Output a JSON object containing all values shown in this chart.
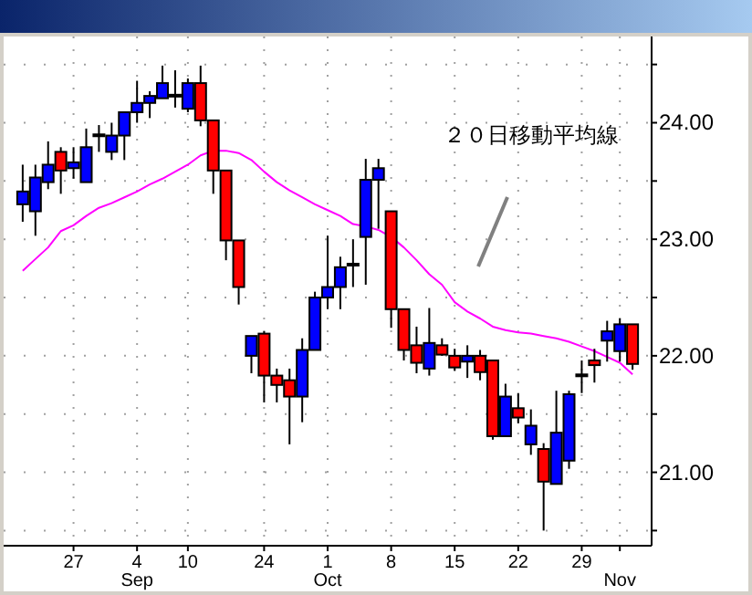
{
  "chart_data": {
    "type": "candlestick",
    "categories": [
      null,
      null,
      null,
      null,
      "27",
      null,
      null,
      null,
      null,
      "4\nSep",
      null,
      null,
      null,
      "10",
      null,
      null,
      null,
      null,
      null,
      "24",
      null,
      null,
      null,
      null,
      "1\nOct",
      null,
      null,
      null,
      null,
      "8",
      null,
      null,
      null,
      null,
      "15",
      null,
      null,
      null,
      null,
      "22",
      null,
      null,
      null,
      null,
      "29",
      null,
      null,
      "\nNov",
      null
    ],
    "ohlc": [
      [
        23.3,
        23.64,
        23.15,
        23.41
      ],
      [
        23.24,
        23.64,
        23.03,
        23.53
      ],
      [
        23.49,
        23.84,
        23.43,
        23.64
      ],
      [
        23.75,
        23.79,
        23.39,
        23.59
      ],
      [
        23.61,
        23.79,
        23.52,
        23.66
      ],
      [
        23.49,
        23.95,
        23.49,
        23.79
      ],
      [
        23.89,
        23.98,
        23.75,
        23.9
      ],
      [
        23.75,
        24.0,
        23.68,
        23.89
      ],
      [
        23.89,
        24.09,
        23.68,
        24.09
      ],
      [
        24.09,
        24.36,
        24.0,
        24.17
      ],
      [
        24.17,
        24.27,
        24.04,
        24.23
      ],
      [
        24.21,
        24.49,
        24.21,
        24.34
      ],
      [
        24.23,
        24.45,
        24.13,
        24.24
      ],
      [
        24.12,
        24.38,
        24.09,
        24.34
      ],
      [
        24.34,
        24.49,
        23.97,
        24.02
      ],
      [
        24.02,
        24.02,
        23.39,
        23.59
      ],
      [
        23.59,
        23.59,
        22.82,
        22.99
      ],
      [
        22.99,
        22.99,
        22.44,
        22.59
      ],
      [
        22.0,
        22.17,
        21.85,
        22.17
      ],
      [
        22.19,
        22.21,
        21.6,
        21.83
      ],
      [
        21.83,
        21.89,
        21.6,
        21.75
      ],
      [
        21.79,
        21.89,
        21.24,
        21.65
      ],
      [
        21.65,
        22.15,
        21.43,
        22.05
      ],
      [
        22.05,
        22.55,
        22.05,
        22.5
      ],
      [
        22.5,
        23.03,
        22.4,
        22.59
      ],
      [
        22.59,
        22.85,
        22.4,
        22.76
      ],
      [
        22.78,
        23.0,
        22.59,
        22.79
      ],
      [
        23.02,
        23.69,
        22.61,
        23.51
      ],
      [
        23.51,
        23.69,
        23.09,
        23.61
      ],
      [
        23.24,
        23.24,
        22.24,
        22.4
      ],
      [
        22.4,
        22.4,
        21.96,
        22.05
      ],
      [
        22.09,
        22.25,
        21.85,
        21.94
      ],
      [
        21.89,
        22.41,
        21.83,
        22.11
      ],
      [
        22.09,
        22.15,
        22.0,
        22.01
      ],
      [
        22.0,
        22.06,
        21.87,
        21.9
      ],
      [
        21.95,
        22.09,
        21.81,
        22.0
      ],
      [
        22.0,
        22.05,
        21.79,
        21.86
      ],
      [
        21.96,
        21.96,
        21.28,
        21.31
      ],
      [
        21.31,
        21.76,
        21.31,
        21.65
      ],
      [
        21.55,
        21.68,
        21.42,
        21.47
      ],
      [
        21.24,
        21.54,
        21.15,
        21.4
      ],
      [
        21.2,
        21.25,
        20.5,
        20.92
      ],
      [
        20.9,
        21.7,
        20.9,
        21.34
      ],
      [
        21.1,
        21.7,
        21.03,
        21.67
      ],
      [
        21.83,
        21.96,
        21.68,
        21.84
      ],
      [
        21.96,
        22.06,
        21.77,
        21.92
      ],
      [
        22.13,
        22.3,
        21.95,
        22.21
      ],
      [
        22.04,
        22.32,
        21.95,
        22.27
      ],
      [
        22.27,
        22.27,
        21.88,
        21.93
      ]
    ],
    "colors": [
      "#0000ff",
      "#0000ff",
      "#0000ff",
      "#ff0000",
      "#0000ff",
      "#0000ff",
      "#0000ff",
      "#0000ff",
      "#0000ff",
      "#0000ff",
      "#0000ff",
      "#0000ff",
      "#0000ff",
      "#0000ff",
      "#ff0000",
      "#ff0000",
      "#ff0000",
      "#ff0000",
      "#0000ff",
      "#ff0000",
      "#ff0000",
      "#ff0000",
      "#0000ff",
      "#0000ff",
      "#0000ff",
      "#0000ff",
      "#0000ff",
      "#0000ff",
      "#0000ff",
      "#ff0000",
      "#ff0000",
      "#ff0000",
      "#0000ff",
      "#ff0000",
      "#ff0000",
      "#0000ff",
      "#ff0000",
      "#ff0000",
      "#0000ff",
      "#ff0000",
      "#0000ff",
      "#ff0000",
      "#0000ff",
      "#0000ff",
      "#0000ff",
      "#ff0000",
      "#0000ff",
      "#0000ff",
      "#ff0000"
    ],
    "series": [
      {
        "type": "line",
        "color": "#ff00ff",
        "values": [
          22.73,
          22.83,
          22.93,
          23.07,
          23.12,
          23.2,
          23.27,
          23.31,
          23.36,
          23.41,
          23.47,
          23.52,
          23.58,
          23.64,
          23.72,
          23.76,
          23.76,
          23.74,
          23.68,
          23.58,
          23.49,
          23.42,
          23.36,
          23.3,
          23.25,
          23.2,
          23.13,
          23.11,
          23.08,
          23.02,
          22.93,
          22.82,
          22.7,
          22.61,
          22.46,
          22.38,
          22.32,
          22.25,
          22.22,
          22.2,
          22.19,
          22.17,
          22.15,
          22.12,
          22.08,
          22.04,
          21.99,
          21.94,
          21.84
        ]
      }
    ],
    "ylim": [
      20.37,
      24.74
    ],
    "yticks": [
      {
        "value": 20.5,
        "label": null
      },
      {
        "value": 21,
        "label": "21.00"
      },
      {
        "value": 21.5,
        "label": null
      },
      {
        "value": 22,
        "label": "22.00"
      },
      {
        "value": 22.5,
        "label": null
      },
      {
        "value": 23,
        "label": "23.00"
      },
      {
        "value": 23.5,
        "label": null
      },
      {
        "value": 24,
        "label": "24.00"
      },
      {
        "value": 24.5,
        "label": null
      }
    ],
    "grid": true,
    "marker": "none",
    "annotations": [
      "２０日移動平均線"
    ]
  }
}
